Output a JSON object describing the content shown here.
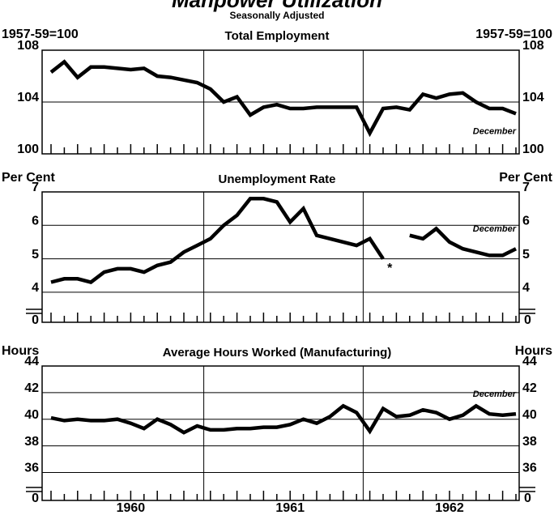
{
  "title": "Manpower Utilization",
  "subtitle": "Seasonally Adjusted",
  "chart_data": [
    {
      "type": "line",
      "title": "Total Employment",
      "y_label": "1957-59=100",
      "ylim": [
        100,
        108
      ],
      "yticks": [
        100,
        104,
        108
      ],
      "grid": true,
      "annotation": "December",
      "series": [
        {
          "name": "Total Employment",
          "color": "#000000",
          "values": [
            106.3,
            107.1,
            105.9,
            106.7,
            106.7,
            106.6,
            106.5,
            106.6,
            106.0,
            105.9,
            105.7,
            105.5,
            105.0,
            104.0,
            104.4,
            103.0,
            103.6,
            103.8,
            103.5,
            103.5,
            103.6,
            103.6,
            103.6,
            103.6,
            101.6,
            103.5,
            103.6,
            103.4,
            104.6,
            104.3,
            104.6,
            104.7,
            104.0,
            103.5,
            103.5,
            103.1
          ]
        }
      ]
    },
    {
      "type": "line",
      "title": "Unemployment Rate",
      "y_label": "Per Cent",
      "ylim": [
        3.1,
        7
      ],
      "yticks": [
        4,
        5,
        6,
        7
      ],
      "break_tick": 0,
      "grid": true,
      "annotation": "December",
      "note": "*",
      "series": [
        {
          "name": "Unemployment Rate",
          "color": "#000000",
          "values": [
            4.3,
            4.4,
            4.4,
            4.3,
            4.6,
            4.7,
            4.7,
            4.6,
            4.8,
            4.9,
            5.2,
            5.4,
            5.6,
            6.0,
            6.3,
            6.8,
            6.8,
            6.7,
            6.1,
            6.5,
            5.7,
            5.6,
            5.5,
            5.4,
            5.6,
            5.0,
            null,
            5.7,
            5.6,
            5.9,
            5.5,
            5.3,
            5.2,
            5.1,
            5.1,
            5.3
          ]
        }
      ]
    },
    {
      "type": "line",
      "title": "Average Hours Worked (Manufacturing)",
      "y_label": "Hours",
      "ylim": [
        33.9,
        44
      ],
      "yticks": [
        36,
        38,
        40,
        42,
        44
      ],
      "break_tick": 0,
      "grid": true,
      "annotation": "December",
      "categories": [
        null,
        null,
        null,
        null,
        null,
        null,
        "1960",
        null,
        null,
        null,
        null,
        null,
        null,
        null,
        null,
        null,
        null,
        null,
        "1961",
        null,
        null,
        null,
        null,
        null,
        null,
        null,
        null,
        null,
        null,
        null,
        "1962",
        null,
        null,
        null,
        null,
        null
      ],
      "series": [
        {
          "name": "Average Hours Worked",
          "color": "#000000",
          "values": [
            40.1,
            39.9,
            40.0,
            39.9,
            39.9,
            40.0,
            39.7,
            39.3,
            40.0,
            39.6,
            39.0,
            39.5,
            39.2,
            39.2,
            39.3,
            39.3,
            39.4,
            39.4,
            39.6,
            40.0,
            39.7,
            40.2,
            41.0,
            40.5,
            39.1,
            40.8,
            40.2,
            40.3,
            40.7,
            40.5,
            40.0,
            40.3,
            41.0,
            40.4,
            40.3,
            40.4
          ]
        }
      ]
    }
  ]
}
